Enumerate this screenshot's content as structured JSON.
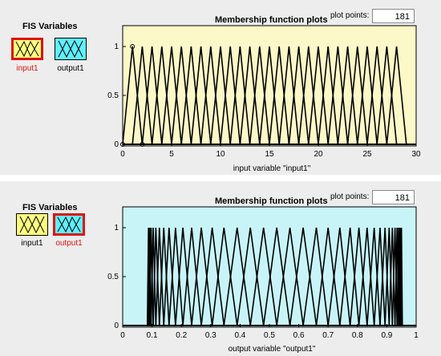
{
  "top": {
    "fis_title": "FIS Variables",
    "mf_title": "Membership function plots",
    "plot_points_label": "plot points:",
    "plot_points_value": "181",
    "inputs": [
      {
        "label": "input1",
        "selected": true
      }
    ],
    "outputs": [
      {
        "label": "output1",
        "selected": false
      }
    ],
    "xlabel": "input variable \"input1\"",
    "xticks": [
      0,
      5,
      10,
      15,
      20,
      25,
      30
    ],
    "yticks": [
      0,
      0.5,
      1
    ],
    "xlim": [
      0,
      30
    ],
    "bg_color": "#fdf8c8",
    "mf_count": 28,
    "mf_peaks_first": 1,
    "mf_step": 1
  },
  "bottom": {
    "fis_title": "FIS Variables",
    "mf_title": "Membership function plots",
    "plot_points_label": "plot points:",
    "plot_points_value": "181",
    "inputs": [
      {
        "label": "input1",
        "selected": false
      }
    ],
    "outputs": [
      {
        "label": "output1",
        "selected": true
      }
    ],
    "xlabel": "output variable \"output1\"",
    "xticks": [
      0,
      0.1,
      0.2,
      0.3,
      0.4,
      0.5,
      0.6,
      0.7,
      0.8,
      0.9,
      1
    ],
    "yticks": [
      0,
      0.5,
      1
    ],
    "xlim": [
      0,
      1
    ],
    "bg_color": "#c8f4f8",
    "mf_peaks": [
      0.088,
      0.092,
      0.097,
      0.104,
      0.113,
      0.125,
      0.14,
      0.158,
      0.18,
      0.205,
      0.235,
      0.268,
      0.305,
      0.345,
      0.39,
      0.435,
      0.48,
      0.525,
      0.57,
      0.615,
      0.66,
      0.7,
      0.74,
      0.775,
      0.805,
      0.833,
      0.857,
      0.877,
      0.894,
      0.908,
      0.919,
      0.928,
      0.935,
      0.94,
      0.944,
      0.947,
      0.95
    ]
  },
  "colors": {
    "input_box": "#ffff80",
    "output_box": "#5ff0ff",
    "selected_border": "#e01010",
    "curve": "#000000"
  }
}
